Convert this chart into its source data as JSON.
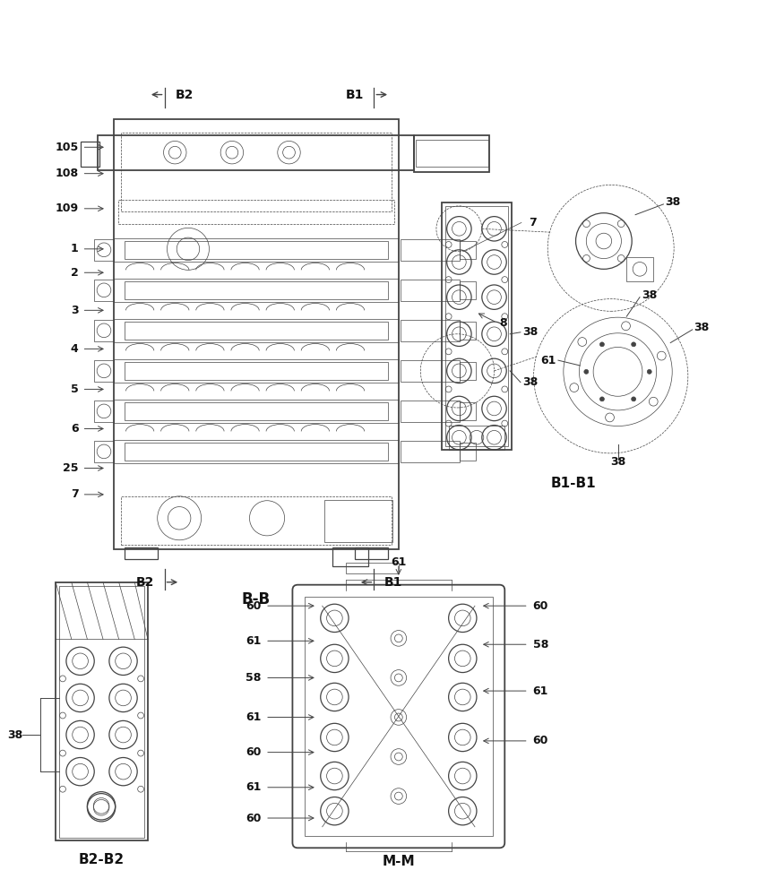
{
  "bg_color": "#ffffff",
  "line_color": "#444444",
  "dark_color": "#111111",
  "title_font_size": 11,
  "label_font_size": 9,
  "bold_label_font_size": 10,
  "main_view_label": "B-B",
  "b1b1_label": "B1-B1",
  "b2b2_label": "B2-B2",
  "mm_label": "M-M"
}
